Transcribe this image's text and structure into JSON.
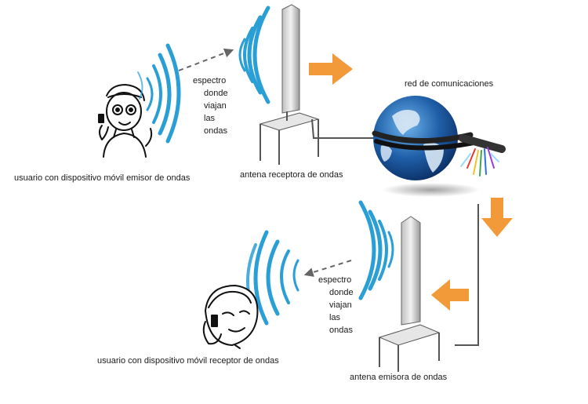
{
  "labels": {
    "sender_user": "usuario con dispositivo móvil emisor de ondas",
    "receiver_antenna": "antena receptora de ondas",
    "network": "red de comunicaciones",
    "receiver_user": "usuario con dispositivo móvil receptor de ondas",
    "sender_antenna": "antena emisora de ondas"
  },
  "spectrum_top": [
    "espectro",
    "donde",
    "viajan",
    "las",
    "ondas"
  ],
  "spectrum_bottom": [
    "espectro",
    "donde",
    "viajan",
    "las",
    "ondas"
  ],
  "colors": {
    "wave": "#2a9fd6",
    "arrow": "#f29a3a",
    "tower": "#d9d9d9",
    "cable": "#555555",
    "globe_ocean": "#1f5fa8",
    "globe_land": "#d9e8f5"
  },
  "icons": [
    "person-sending-icon",
    "person-receiving-icon",
    "antenna-icon",
    "globe-network-icon"
  ]
}
